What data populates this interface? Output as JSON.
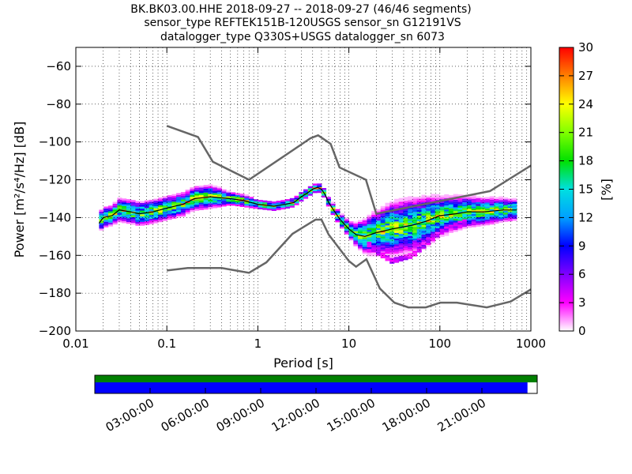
{
  "title_lines": [
    "BK.BK03.00.HHE   2018-09-27 -- 2018-09-27  (46/46 segments)",
    "sensor_type REFTEK151B-120USGS sensor_sn G12191VS",
    "datalogger_type Q330S+USGS datalogger_sn 6073"
  ],
  "chart_data": {
    "type": "heatmap",
    "x_axis": {
      "label": "Period [s]",
      "scale": "log",
      "range": [
        0.01,
        1000
      ],
      "ticks": [
        0.01,
        0.1,
        1,
        10,
        100,
        1000
      ],
      "tick_labels": [
        "0.01",
        "0.1",
        "1",
        "10",
        "100",
        "1000"
      ]
    },
    "y_axis": {
      "label": "Power [m²/s⁴/Hz] [dB]",
      "range": [
        -200,
        -50
      ],
      "ticks": [
        -200,
        -180,
        -160,
        -140,
        -120,
        -100,
        -80,
        -60
      ],
      "tick_labels": [
        "−200",
        "−180",
        "−160",
        "−140",
        "−120",
        "−100",
        "−80",
        "−60"
      ]
    },
    "colorbar": {
      "label": "[%]",
      "range": [
        0,
        30
      ],
      "ticks": [
        "0",
        "3",
        "6",
        "9",
        "12",
        "15",
        "18",
        "21",
        "24",
        "27",
        "30"
      ],
      "colormap": [
        "#ffffff",
        "#ff00ff",
        "#8000ff",
        "#0000ff",
        "#00a0ff",
        "#00e0e0",
        "#00e000",
        "#80ff00",
        "#ffff00",
        "#ff8000",
        "#ff0000"
      ]
    },
    "grid": true,
    "noise_models": {
      "new_high_noise_model": [
        [
          0.1,
          -91.5
        ],
        [
          0.22,
          -97.4
        ],
        [
          0.32,
          -110.5
        ],
        [
          0.8,
          -120.0
        ],
        [
          3.8,
          -98.0
        ],
        [
          4.6,
          -96.5
        ],
        [
          6.3,
          -101.0
        ],
        [
          7.9,
          -113.5
        ],
        [
          15.4,
          -120.0
        ],
        [
          20.0,
          -138.0
        ],
        [
          354.8,
          -126.0
        ],
        [
          1000,
          -112.5
        ]
      ],
      "new_low_noise_model": [
        [
          0.1,
          -168.0
        ],
        [
          0.17,
          -166.7
        ],
        [
          0.4,
          -166.7
        ],
        [
          0.8,
          -169.2
        ],
        [
          1.24,
          -163.7
        ],
        [
          2.4,
          -148.6
        ],
        [
          4.3,
          -141.1
        ],
        [
          5.0,
          -141.1
        ],
        [
          6.0,
          -149.0
        ],
        [
          10.0,
          -163.0
        ],
        [
          12.0,
          -166.0
        ],
        [
          15.6,
          -162.0
        ],
        [
          21.9,
          -177.5
        ],
        [
          31.6,
          -185.0
        ],
        [
          45.0,
          -187.5
        ],
        [
          70.0,
          -187.5
        ],
        [
          101.0,
          -185.0
        ],
        [
          154.0,
          -185.0
        ],
        [
          328.0,
          -187.5
        ],
        [
          600.0,
          -184.4
        ],
        [
          1000,
          -178.0
        ]
      ]
    },
    "psd_mode": {
      "x": [
        0.018,
        0.02,
        0.025,
        0.03,
        0.04,
        0.05,
        0.07,
        0.1,
        0.15,
        0.2,
        0.3,
        0.5,
        0.7,
        1.0,
        1.5,
        2.0,
        2.5,
        3.0,
        3.5,
        4.0,
        4.5,
        5.0,
        5.5,
        6.0,
        7.0,
        8.0,
        10.0,
        12.0,
        15.0,
        20.0,
        30.0,
        50.0,
        70.0,
        100.0,
        150.0,
        200.0,
        300.0,
        500.0,
        700.0
      ],
      "y": [
        -143,
        -140,
        -139,
        -136,
        -137,
        -138,
        -137,
        -135,
        -133,
        -130,
        -129,
        -130,
        -131,
        -133,
        -134,
        -133,
        -132,
        -129,
        -127,
        -125,
        -124,
        -125,
        -128,
        -132,
        -137,
        -141,
        -146,
        -149,
        -150,
        -148,
        -146,
        -144,
        -142,
        -139,
        -138,
        -137,
        -137,
        -136,
        -136
      ],
      "spread_db": [
        5,
        5,
        5,
        6,
        6,
        6,
        6,
        6,
        6,
        6,
        6,
        3,
        3,
        2,
        2,
        2,
        2,
        2,
        2,
        2,
        2,
        2,
        2,
        2,
        3,
        3,
        4,
        6,
        9,
        11,
        14,
        14,
        13,
        10,
        9,
        8,
        7,
        6,
        5
      ]
    },
    "low_branch": {
      "x": [
        15.0,
        20.0,
        30.0,
        50.0,
        70.0,
        100.0,
        150.0,
        200.0
      ],
      "y": [
        -152,
        -158,
        -163,
        -160,
        -154,
        -148,
        -144,
        -142
      ]
    }
  },
  "timeline": {
    "tick_labels": [
      "03:00:00",
      "06:00:00",
      "09:00:00",
      "12:00:00",
      "15:00:00",
      "18:00:00",
      "21:00:00"
    ],
    "coverage_fraction": 0.978,
    "colors": {
      "data": "#0000ff",
      "gaps": "#008000"
    }
  }
}
